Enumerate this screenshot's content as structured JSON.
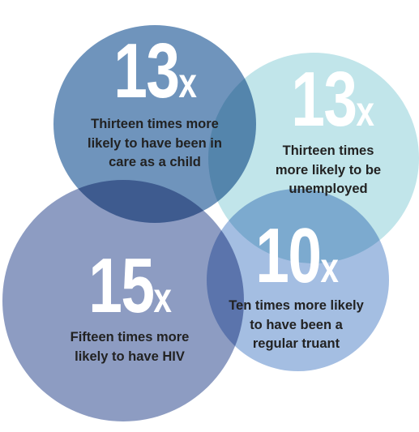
{
  "colors": {
    "care": "#6f94bc",
    "unemployed": "#c1e5ea",
    "hiv": "#8d9cc2",
    "truant": "#a4bee2",
    "text": "#222222",
    "number": "#ffffff"
  },
  "facts": {
    "care": {
      "number": "13",
      "suffix": "x",
      "line1": "Thirteen times more",
      "line2": "likely to have been in",
      "line3": "care as a child"
    },
    "unemployed": {
      "number": "13",
      "suffix": "x",
      "line1": "Thirteen times",
      "line2": "more likely to be",
      "line3": "unemployed"
    },
    "hiv": {
      "number": "15",
      "suffix": "x",
      "line1": "Fifteen times more",
      "line2": "likely to have HIV"
    },
    "truant": {
      "number": "10",
      "suffix": "x",
      "line1": "Ten times more likely",
      "line2": "to have been a",
      "line3": "regular truant"
    }
  }
}
